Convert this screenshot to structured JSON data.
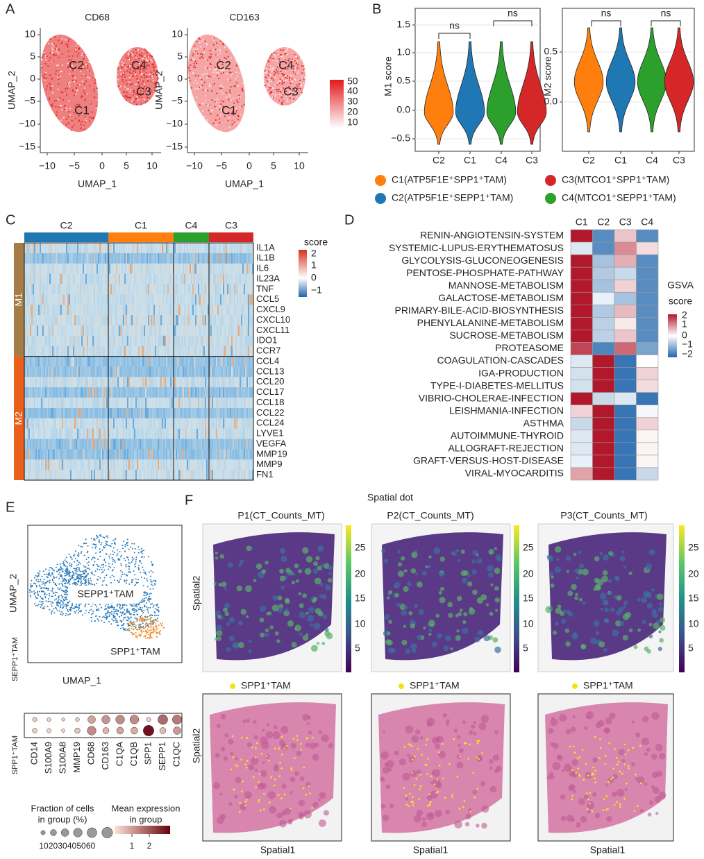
{
  "panel_a": {
    "letter": "A",
    "plots": [
      {
        "title": "CD68"
      },
      {
        "title": "CD163"
      }
    ],
    "x_ticks": [
      "−10",
      "−5",
      "0",
      "5",
      "10"
    ],
    "y_ticks": [
      "10",
      "5",
      "0",
      "−5",
      "−10",
      "−15"
    ],
    "x_label": "UMAP_1",
    "y_label": "UMAP_2",
    "cluster_labels": [
      "C2",
      "C4",
      "C3",
      "C1"
    ],
    "colorbar_ticks": [
      "50",
      "40",
      "30",
      "20",
      "10"
    ]
  },
  "panel_b": {
    "letter": "B",
    "plots": [
      {
        "y_label": "M1 score",
        "y_ticks": [
          "1.5",
          "1.0",
          "0.5",
          "0.0",
          "−0.5"
        ],
        "annotations": [
          "ns",
          "ns"
        ]
      },
      {
        "y_label": "M2 score",
        "y_ticks": [
          "0.5",
          "0.0"
        ],
        "annotations": [
          "ns",
          "ns"
        ]
      }
    ],
    "categories": [
      "C2",
      "C1",
      "C4",
      "C3"
    ],
    "legend": [
      "C1(ATP5F1E⁺SPP1⁺TAM)",
      "C3(MTCO1⁺SPP1⁺TAM)",
      "C2(ATP5F1E⁺SEPP1⁺TAM)",
      "C4(MTCO1⁺SEPP1⁺TAM)"
    ]
  },
  "panel_c": {
    "letter": "C",
    "groups": [
      "C2",
      "C1",
      "C4",
      "C3"
    ],
    "modules": [
      "M1",
      "M2"
    ],
    "genes": [
      "IL1A",
      "IL1B",
      "IL6",
      "IL23A",
      "TNF",
      "CCL5",
      "CXCL9",
      "CXCL10",
      "CXCL11",
      "IDO1",
      "CCR7",
      "CCL4",
      "CCL13",
      "CCL20",
      "CCL17",
      "CCL18",
      "CCL22",
      "CCL24",
      "LYVE1",
      "VEGFA",
      "MMP19",
      "MMP9",
      "FN1"
    ],
    "colorbar_title": "score",
    "colorbar_ticks": [
      "2",
      "1",
      "0",
      "−1"
    ]
  },
  "panel_d": {
    "letter": "D",
    "columns": [
      "C1",
      "C2",
      "C3",
      "C4"
    ],
    "pathways": [
      {
        "name": "RENIN-ANGIOTENSIN-SYSTEM",
        "scores": [
          2,
          -1.5,
          0.5,
          -1.5
        ]
      },
      {
        "name": "SYSTEMIC-LUPUS-ERYTHEMATOSUS",
        "scores": [
          -0.3,
          -1.5,
          1.0,
          0.3
        ]
      },
      {
        "name": "GLYCOLYSIS-GLUCONEOGENESIS",
        "scores": [
          2,
          -0.8,
          0.7,
          -1.5
        ]
      },
      {
        "name": "PENTOSE-PHOSPHATE-PATHWAY",
        "scores": [
          2,
          -0.7,
          -0.5,
          -1.5
        ]
      },
      {
        "name": "MANNOSE-METABOLISM",
        "scores": [
          2,
          -0.8,
          0.4,
          -1.5
        ]
      },
      {
        "name": "GALACTOSE-METABOLISM",
        "scores": [
          2,
          -0.2,
          -0.8,
          -1.5
        ]
      },
      {
        "name": "PRIMARY-BILE-ACID-BIOSYNTHESIS",
        "scores": [
          2,
          -0.7,
          0.6,
          -1.5
        ]
      },
      {
        "name": "PHENYLALANINE-METABOLISM",
        "scores": [
          2,
          -0.6,
          0.2,
          -1.5
        ]
      },
      {
        "name": "SUCROSE-METABOLISM",
        "scores": [
          2,
          -0.6,
          0.5,
          -1.5
        ]
      },
      {
        "name": "PROTEASOME",
        "scores": [
          1.6,
          -1.6,
          1.3,
          -1.2
        ]
      },
      {
        "name": "COAGULATION-CASCADES",
        "scores": [
          -0.3,
          2,
          -1.8,
          0
        ]
      },
      {
        "name": "IGA-PRODUCTION",
        "scores": [
          -0.4,
          2,
          -1.8,
          0.4
        ]
      },
      {
        "name": "TYPE-I-DIABETES-MELLITUS",
        "scores": [
          -0.4,
          2,
          -1.8,
          0.3
        ]
      },
      {
        "name": "VIBRIO-CHOLERAE-INFECTION",
        "scores": [
          2,
          -0.5,
          -0.3,
          -1.8
        ]
      },
      {
        "name": "LEISHMANIA-INFECTION",
        "scores": [
          0.4,
          2,
          -1.8,
          -0.1
        ]
      },
      {
        "name": "ASTHMA",
        "scores": [
          -0.5,
          2,
          -1.8,
          0.4
        ]
      },
      {
        "name": "AUTOIMMUNE-THYROID",
        "scores": [
          -0.3,
          2,
          -1.8,
          0.1
        ]
      },
      {
        "name": "ALLOGRAFT-REJECTION",
        "scores": [
          -0.3,
          2,
          -1.8,
          0.1
        ]
      },
      {
        "name": "GRAFT-VERSUS-HOST-DISEASE",
        "scores": [
          -0.2,
          2,
          -1.8,
          0.1
        ]
      },
      {
        "name": "VIRAL-MYOCARDITIS",
        "scores": [
          0.8,
          2,
          -1.8,
          -0.5
        ]
      }
    ],
    "legend_title": [
      "GSVA",
      "score"
    ],
    "colorbar_ticks": [
      "2",
      "1",
      "0",
      "−1",
      "−2"
    ]
  },
  "panel_e": {
    "letter": "E",
    "umap_labels": [
      "SEPP1⁺TAM",
      "SPP1⁺TAM"
    ],
    "x_label": "UMAP_1",
    "y_label": "UMAP_2",
    "groups": [
      "SEPP1⁺TAM",
      "SPP1⁺TAM"
    ],
    "genes": [
      "CD14",
      "S100A9",
      "S100A8",
      "MMP19",
      "CD68",
      "CD163",
      "C1QA",
      "C1QB",
      "SPP1",
      "SEPP1",
      "C1QC"
    ],
    "fraction": [
      [
        10,
        8,
        5,
        8,
        30,
        35,
        40,
        40,
        10,
        50,
        45
      ],
      [
        12,
        10,
        6,
        15,
        40,
        20,
        25,
        25,
        60,
        20,
        30
      ]
    ],
    "mean_expression": [
      [
        0.3,
        0.2,
        0.2,
        0.3,
        0.8,
        1.0,
        1.1,
        1.1,
        0.3,
        1.5,
        1.3
      ],
      [
        0.3,
        0.2,
        0.2,
        0.4,
        1.1,
        0.6,
        0.8,
        0.7,
        2.6,
        0.5,
        0.9
      ]
    ],
    "size_legend_title": [
      "Fraction of cells",
      "in group (%)"
    ],
    "size_legend_ticks": [
      10,
      20,
      30,
      40,
      50,
      60
    ],
    "color_legend_title": [
      "Mean expression",
      "in group"
    ],
    "color_legend_ticks": [
      1,
      2
    ]
  },
  "panel_f": {
    "letter": "F",
    "title": "Spatial dot",
    "samples": [
      "P1(CT_Counts_MT)",
      "P2(CT_Counts_MT)",
      "P3(CT_Counts_MT)"
    ],
    "colorbar_ticks": [
      "25",
      "20",
      "15",
      "10",
      "5"
    ],
    "legend": "SPP1⁺TAM",
    "x_label": "Spatial1",
    "y_label": "Spatial2"
  }
}
